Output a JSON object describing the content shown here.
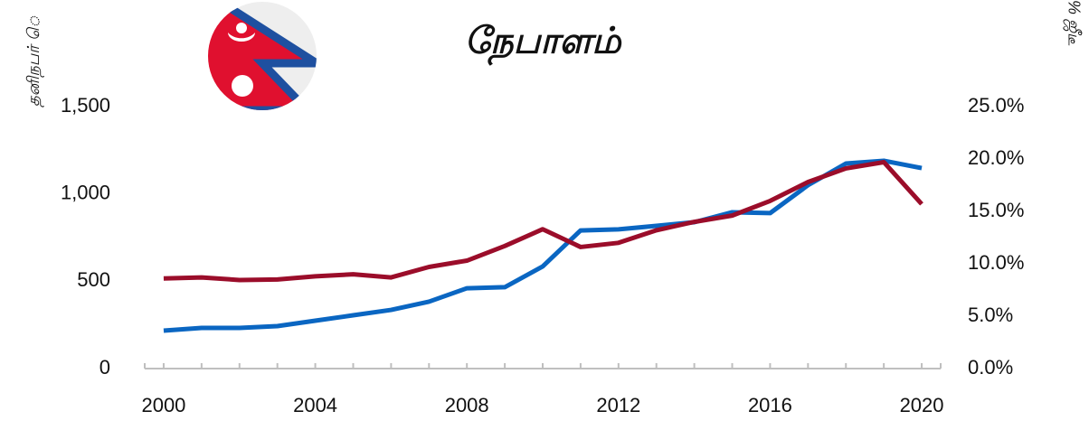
{
  "chart_data": {
    "type": "line",
    "title": "நேபாளம்",
    "y_label": "தனிநபர் ெ",
    "y2_label": "% ஜீடீ",
    "x": [
      2000,
      2001,
      2002,
      2003,
      2004,
      2005,
      2006,
      2007,
      2008,
      2009,
      2010,
      2011,
      2012,
      2013,
      2014,
      2015,
      2016,
      2017,
      2018,
      2019,
      2020
    ],
    "xlim": [
      1999.5,
      2020.5
    ],
    "xticks": [
      2000,
      2004,
      2008,
      2012,
      2016,
      2020
    ],
    "ylim": [
      0,
      1500
    ],
    "yticks": [
      0,
      500,
      {
        "value": 1000,
        "label": "1,000"
      },
      {
        "value": 1500,
        "label": "1,500"
      }
    ],
    "y2lim": [
      0,
      25
    ],
    "y2ticks": [
      {
        "value": 0,
        "label": "0.0%"
      },
      {
        "value": 5,
        "label": "5.0%"
      },
      {
        "value": 10,
        "label": "10.0%"
      },
      {
        "value": 15,
        "label": "15.0%"
      },
      {
        "value": 20,
        "label": "20.0%"
      },
      {
        "value": 25,
        "label": "25.0%"
      }
    ],
    "series": [
      {
        "color": "#0a66c2",
        "values": [
          217,
          233,
          233,
          243,
          274,
          305,
          336,
          383,
          460,
          466,
          585,
          791,
          797,
          817,
          838,
          895,
          890,
          1050,
          1174,
          1190,
          1148
        ]
      },
      {
        "color": "#9b0d2a",
        "axis": "y2",
        "values": [
          8.6,
          8.7,
          8.45,
          8.5,
          8.8,
          9.0,
          8.7,
          9.7,
          10.3,
          11.7,
          13.3,
          11.6,
          12.0,
          13.2,
          14.0,
          14.6,
          16.0,
          17.8,
          19.1,
          19.7,
          15.7
        ]
      }
    ]
  }
}
